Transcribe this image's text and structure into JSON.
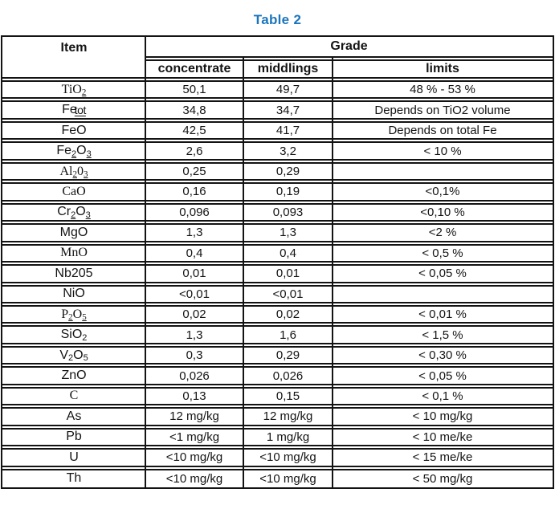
{
  "title": "Table 2",
  "colors": {
    "accent": "#1b75bc",
    "border": "#131313",
    "text": "#141414"
  },
  "table": {
    "header": {
      "item": "Item",
      "grade": "Grade",
      "subcolumns": [
        "concentrate",
        "middlings",
        "limits"
      ]
    },
    "rows": [
      {
        "item": [
          {
            "t": "TiO"
          },
          {
            "t": "2",
            "style": "sub u"
          }
        ],
        "serif": true,
        "concentrate": "50,1",
        "middlings": "49,7",
        "limits": "48 % - 53 %"
      },
      {
        "item": [
          {
            "t": "Fe"
          },
          {
            "t": "tot",
            "style": "tot"
          }
        ],
        "concentrate": "34,8",
        "middlings": "34,7",
        "limits": "Depends on TiO2 volume"
      },
      {
        "item": [
          {
            "t": "FeO"
          }
        ],
        "concentrate": "42,5",
        "middlings": "41,7",
        "limits": "Depends on total Fe"
      },
      {
        "item": [
          {
            "t": "Fe"
          },
          {
            "t": "2",
            "style": "sub u"
          },
          {
            "t": "O"
          },
          {
            "t": "3",
            "style": "sub u"
          }
        ],
        "concentrate": "2,6",
        "middlings": "3,2",
        "limits": "< 10 %"
      },
      {
        "item": [
          {
            "t": "Al"
          },
          {
            "t": "2",
            "style": "sub u"
          },
          {
            "t": "0"
          },
          {
            "t": "3",
            "style": "sub u"
          }
        ],
        "serif": true,
        "concentrate": "0,25",
        "middlings": "0,29",
        "limits": ""
      },
      {
        "item": [
          {
            "t": "CaO"
          }
        ],
        "serif": true,
        "concentrate": "0,16",
        "middlings": "0,19",
        "limits": "<0,1%"
      },
      {
        "item": [
          {
            "t": "Cr"
          },
          {
            "t": "2",
            "style": "sub u"
          },
          {
            "t": "O"
          },
          {
            "t": "3",
            "style": "sub u"
          }
        ],
        "concentrate": "0,096",
        "middlings": "0,093",
        "limits": "<0,10 %"
      },
      {
        "item": [
          {
            "t": "MgO"
          }
        ],
        "concentrate": "1,3",
        "middlings": "1,3",
        "limits": "<2 %"
      },
      {
        "item": [
          {
            "t": "MnO"
          }
        ],
        "serif": true,
        "concentrate": "0,4",
        "middlings": "0,4",
        "limits": "< 0,5 %"
      },
      {
        "item": [
          {
            "t": "Nb205"
          }
        ],
        "concentrate": "0,01",
        "middlings": "0,01",
        "limits": "< 0,05 %"
      },
      {
        "item": [
          {
            "t": "NiO"
          }
        ],
        "concentrate": "<0,01",
        "middlings": "<0,01",
        "limits": ""
      },
      {
        "item": [
          {
            "t": "P"
          },
          {
            "t": "2",
            "style": "sub u"
          },
          {
            "t": "O"
          },
          {
            "t": "5",
            "style": "sub u"
          }
        ],
        "serif": true,
        "concentrate": "0,02",
        "middlings": "0,02",
        "limits": "< 0,01 %"
      },
      {
        "item": [
          {
            "t": "SiO"
          },
          {
            "t": "2",
            "style": "sub"
          }
        ],
        "concentrate": "1,3",
        "middlings": "1,6",
        "limits": "< 1,5 %"
      },
      {
        "item": [
          {
            "t": "V"
          },
          {
            "t": "2",
            "style": "sub"
          },
          {
            "t": "O"
          },
          {
            "t": "5",
            "style": "sub"
          }
        ],
        "concentrate": "0,3",
        "middlings": "0,29",
        "limits": "< 0,30 %"
      },
      {
        "item": [
          {
            "t": "ZnO"
          }
        ],
        "concentrate": "0,026",
        "middlings": "0,026",
        "limits": "< 0,05 %"
      },
      {
        "item": [
          {
            "t": "C"
          }
        ],
        "serif": true,
        "concentrate": "0,13",
        "middlings": "0,15",
        "limits": "< 0,1 %"
      },
      {
        "item": [
          {
            "t": "As"
          }
        ],
        "concentrate": "12 mg/kg",
        "middlings": "12 mg/kg",
        "limits": "< 10 mg/kg"
      },
      {
        "item": [
          {
            "t": "Pb"
          }
        ],
        "concentrate": "<1 mg/kg",
        "middlings": "1 mg/kg",
        "limits": "< 10 me/ke"
      },
      {
        "item": [
          {
            "t": "U"
          }
        ],
        "concentrate": "<10 mg/kg",
        "middlings": "<10 mg/kg",
        "limits": "< 15 me/ke"
      },
      {
        "item": [
          {
            "t": "Th"
          }
        ],
        "concentrate": "<10 mg/kg",
        "middlings": "<10 mg/kg",
        "limits": "< 50 mg/kg"
      }
    ]
  }
}
